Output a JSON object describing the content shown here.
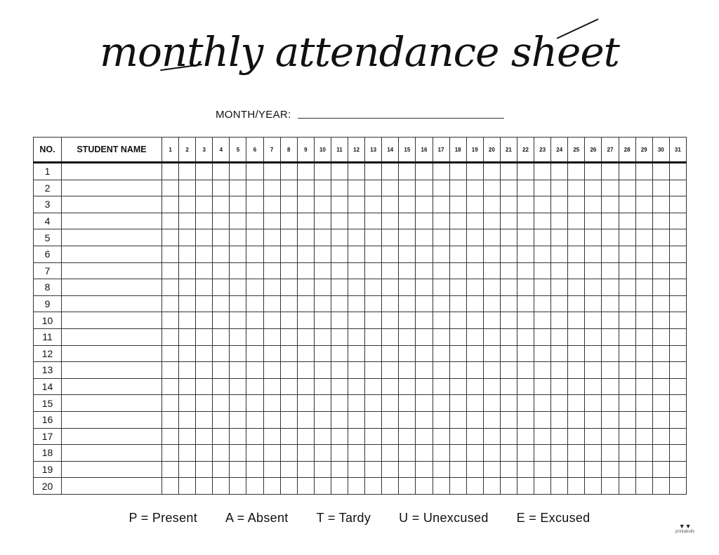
{
  "title": "monthly attendance sheet",
  "month_year_label": "MONTH/YEAR:",
  "table": {
    "headers": {
      "no": "NO.",
      "name": "STUDENT NAME"
    },
    "days": [
      "1",
      "2",
      "3",
      "4",
      "5",
      "6",
      "7",
      "8",
      "9",
      "10",
      "11",
      "12",
      "13",
      "14",
      "15",
      "16",
      "17",
      "18",
      "19",
      "20",
      "21",
      "22",
      "23",
      "24",
      "25",
      "26",
      "27",
      "28",
      "29",
      "30",
      "31"
    ],
    "rows": [
      "1",
      "2",
      "3",
      "4",
      "5",
      "6",
      "7",
      "8",
      "9",
      "10",
      "11",
      "12",
      "13",
      "14",
      "15",
      "16",
      "17",
      "18",
      "19",
      "20"
    ]
  },
  "legend": [
    "P = Present",
    "A = Absent",
    "T = Tardy",
    "U = Unexcused",
    "E = Excused"
  ],
  "logo": {
    "text": "printabulls",
    "icon": "bulldog-icon"
  }
}
